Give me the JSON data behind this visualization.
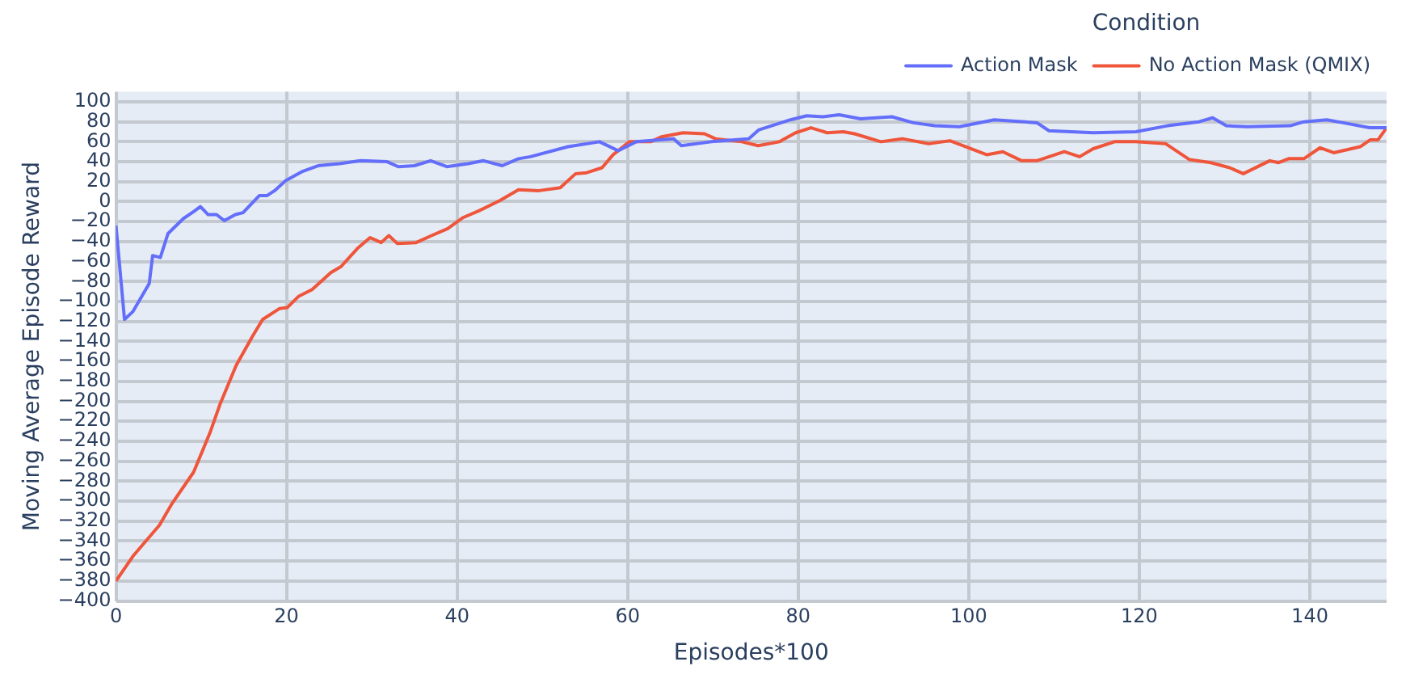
{
  "chart_data": {
    "type": "line",
    "xlabel": "Episodes*100",
    "ylabel": "Moving Average Episode Reward",
    "legend_title": "Condition",
    "legend": "top right",
    "grid": true,
    "marker": "none",
    "line_style": "solid",
    "xlim": [
      0,
      149
    ],
    "xticks": [
      0,
      20,
      40,
      60,
      80,
      100,
      120,
      140
    ],
    "ylim": [
      -400,
      110
    ],
    "yticks": [
      -400,
      -380,
      -360,
      -340,
      -320,
      -300,
      -280,
      -260,
      -240,
      -220,
      -200,
      -180,
      -160,
      -140,
      -120,
      -100,
      -80,
      -60,
      -40,
      -20,
      0,
      20,
      40,
      60,
      80,
      100
    ],
    "series": [
      {
        "name": "Action Mask",
        "color": "#636efa",
        "x": [
          0,
          1,
          2,
          3.9,
          4.3,
          5.2,
          6.1,
          7.9,
          9.1,
          9.9,
          10.8,
          11.8,
          12.7,
          14,
          14.9,
          16.8,
          17.7,
          18.6,
          19.9,
          21.8,
          23.7,
          26.2,
          28.7,
          31.8,
          33.1,
          35,
          36.9,
          38.8,
          41.3,
          43.1,
          45.3,
          47.2,
          48.6,
          53,
          56.7,
          58.9,
          61,
          65.4,
          66.3,
          69.8,
          74.2,
          75.4,
          79.1,
          81,
          82.9,
          84.8,
          87.3,
          91,
          93.5,
          96,
          98.9,
          103,
          108,
          109.4,
          114.6,
          119.6,
          123.3,
          127,
          128.6,
          130.2,
          132.7,
          137.7,
          139.3,
          142,
          143.9,
          147,
          149
        ],
        "values": [
          -24,
          -118,
          -110,
          -82,
          -54,
          -56,
          -32,
          -17,
          -10,
          -5,
          -13,
          -13,
          -19,
          -13,
          -11,
          6,
          6,
          11,
          21,
          30,
          36,
          38,
          41,
          40,
          35,
          36,
          41,
          35,
          38,
          41,
          36,
          43,
          45,
          55,
          60,
          51,
          60,
          63,
          56,
          60,
          63,
          72,
          82,
          86,
          85,
          87,
          83,
          85,
          79,
          76,
          75,
          82,
          79,
          71,
          69,
          70,
          76,
          80,
          84,
          76,
          75,
          76,
          80,
          82,
          79,
          74,
          74
        ]
      },
      {
        "name": "No Action Mask (QMIX)",
        "color": "#ef553b",
        "x": [
          0,
          2,
          5.1,
          6.6,
          9.1,
          11,
          12.2,
          14.1,
          16,
          17.2,
          19.2,
          20.1,
          21.4,
          23,
          25.2,
          26.4,
          28.3,
          29.8,
          31.1,
          32,
          33,
          35.2,
          37,
          38.9,
          40.7,
          42.6,
          45,
          47.2,
          49.6,
          52.1,
          53.9,
          55.2,
          57,
          58.3,
          60.2,
          62.7,
          64,
          66.5,
          69,
          70.3,
          73.4,
          75.3,
          77.8,
          79.7,
          81.5,
          83.4,
          85.3,
          86.6,
          89.7,
          92.2,
          95.3,
          97.8,
          102.1,
          104,
          106.2,
          108,
          111.2,
          113,
          114.6,
          117.1,
          119.6,
          123.1,
          125.9,
          128.4,
          130.6,
          132.2,
          135.3,
          136.3,
          137.5,
          139.3,
          141.2,
          142.8,
          145.9,
          147.1,
          148,
          149
        ],
        "values": [
          -380,
          -355,
          -324,
          -302,
          -271,
          -232,
          -203,
          -164,
          -135,
          -118,
          -107,
          -106,
          -95,
          -88,
          -71,
          -65,
          -47,
          -36,
          -41,
          -34,
          -42,
          -41,
          -34,
          -27,
          -16,
          -9,
          1,
          12,
          11,
          14,
          28,
          29,
          34,
          47,
          60,
          60,
          65,
          69,
          68,
          63,
          60,
          56,
          60,
          69,
          74,
          69,
          70,
          68,
          60,
          63,
          58,
          61,
          47,
          50,
          41,
          41,
          50,
          45,
          53,
          60,
          60,
          58,
          42,
          39,
          34,
          28,
          41,
          39,
          43,
          43,
          54,
          49,
          55,
          62,
          62,
          74
        ]
      }
    ]
  }
}
